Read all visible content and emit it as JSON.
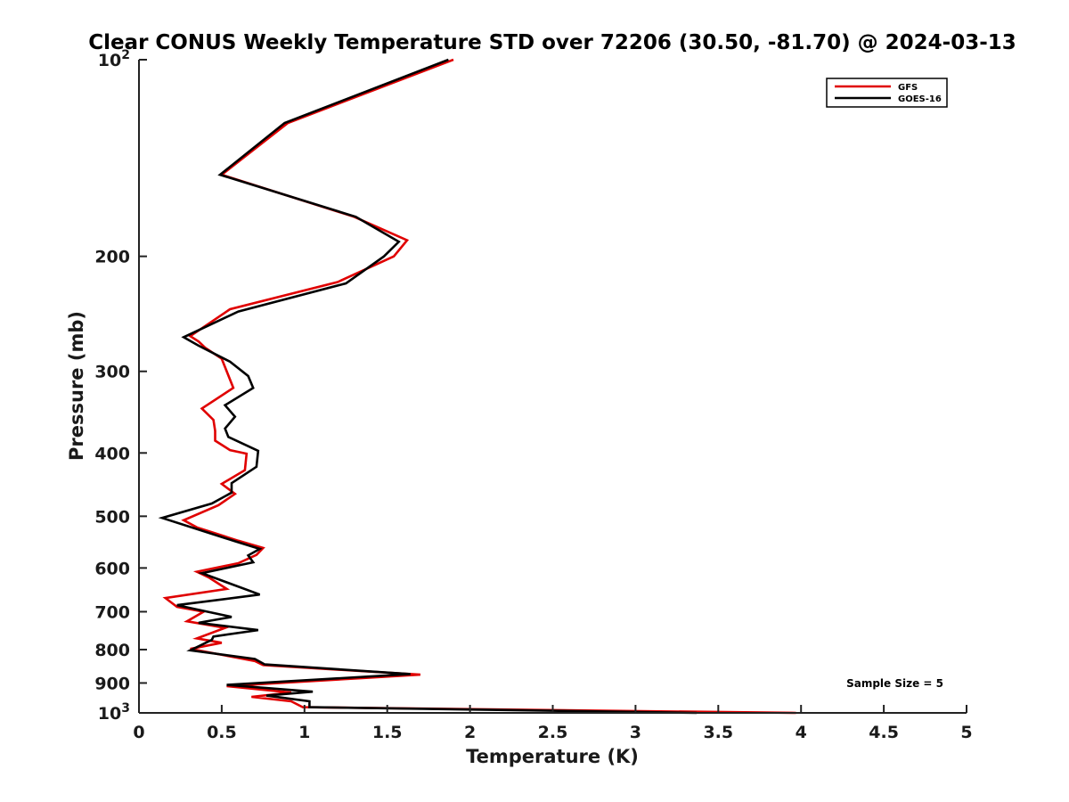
{
  "chart_data": {
    "type": "line",
    "title": "Clear CONUS Weekly Temperature STD over 72206 (30.50, -81.70) @ 2024-03-13",
    "xlabel": "Temperature (K)",
    "ylabel": "Pressure (mb)",
    "xlim": [
      0,
      5
    ],
    "ylim": [
      1000,
      100
    ],
    "y_scale": "log",
    "x_ticks": [
      "0",
      "0.5",
      "1",
      "1.5",
      "2",
      "2.5",
      "3",
      "3.5",
      "4",
      "4.5",
      "5"
    ],
    "y_ticks": [
      {
        "value": 100,
        "label": "10",
        "sup": "2"
      },
      {
        "value": 200,
        "label": "200",
        "sup": ""
      },
      {
        "value": 300,
        "label": "300",
        "sup": ""
      },
      {
        "value": 400,
        "label": "400",
        "sup": ""
      },
      {
        "value": 500,
        "label": "500",
        "sup": ""
      },
      {
        "value": 600,
        "label": "600",
        "sup": ""
      },
      {
        "value": 700,
        "label": "700",
        "sup": ""
      },
      {
        "value": 800,
        "label": "800",
        "sup": ""
      },
      {
        "value": 900,
        "label": "900",
        "sup": ""
      },
      {
        "value": 1000,
        "label": "10",
        "sup": "3"
      }
    ],
    "grid": false,
    "legend_position": "top-right",
    "annotation": "Sample Size = 5",
    "series": [
      {
        "name": "GFS",
        "color": "#e00000",
        "points": [
          [
            1.9,
            100
          ],
          [
            0.9,
            125
          ],
          [
            0.5,
            150
          ],
          [
            1.3,
            174
          ],
          [
            1.62,
            189
          ],
          [
            1.54,
            200
          ],
          [
            1.2,
            219
          ],
          [
            0.55,
            241
          ],
          [
            0.31,
            265
          ],
          [
            0.36,
            270
          ],
          [
            0.4,
            276
          ],
          [
            0.5,
            287
          ],
          [
            0.57,
            318
          ],
          [
            0.38,
            342
          ],
          [
            0.45,
            356
          ],
          [
            0.46,
            370
          ],
          [
            0.46,
            383
          ],
          [
            0.55,
            396
          ],
          [
            0.65,
            401
          ],
          [
            0.64,
            425
          ],
          [
            0.5,
            446
          ],
          [
            0.58,
            462
          ],
          [
            0.48,
            481
          ],
          [
            0.27,
            507
          ],
          [
            0.35,
            520
          ],
          [
            0.6,
            545
          ],
          [
            0.75,
            559
          ],
          [
            0.71,
            573
          ],
          [
            0.6,
            590
          ],
          [
            0.35,
            608
          ],
          [
            0.42,
            620
          ],
          [
            0.53,
            646
          ],
          [
            0.16,
            667
          ],
          [
            0.23,
            688
          ],
          [
            0.39,
            700
          ],
          [
            0.29,
            724
          ],
          [
            0.52,
            741
          ],
          [
            0.35,
            769
          ],
          [
            0.5,
            781
          ],
          [
            0.31,
            798
          ],
          [
            0.7,
            833
          ],
          [
            0.75,
            845
          ],
          [
            1.7,
            874
          ],
          [
            0.53,
            910
          ],
          [
            0.92,
            931
          ],
          [
            0.68,
            945
          ],
          [
            0.92,
            960
          ],
          [
            0.99,
            980
          ],
          [
            3.97,
            1000
          ]
        ]
      },
      {
        "name": "GOES-16",
        "color": "#000000",
        "points": [
          [
            1.87,
            100
          ],
          [
            0.88,
            125
          ],
          [
            0.49,
            150
          ],
          [
            1.31,
            174
          ],
          [
            1.57,
            190
          ],
          [
            1.48,
            200
          ],
          [
            1.25,
            220
          ],
          [
            0.6,
            243
          ],
          [
            0.27,
            266
          ],
          [
            0.36,
            274
          ],
          [
            0.55,
            290
          ],
          [
            0.66,
            305
          ],
          [
            0.69,
            318
          ],
          [
            0.52,
            338
          ],
          [
            0.58,
            352
          ],
          [
            0.52,
            367
          ],
          [
            0.54,
            378
          ],
          [
            0.72,
            397
          ],
          [
            0.71,
            420
          ],
          [
            0.56,
            445
          ],
          [
            0.56,
            460
          ],
          [
            0.44,
            478
          ],
          [
            0.14,
            503
          ],
          [
            0.58,
            546
          ],
          [
            0.73,
            561
          ],
          [
            0.66,
            574
          ],
          [
            0.69,
            588
          ],
          [
            0.38,
            611
          ],
          [
            0.73,
            659
          ],
          [
            0.23,
            684
          ],
          [
            0.56,
            713
          ],
          [
            0.36,
            728
          ],
          [
            0.72,
            747
          ],
          [
            0.45,
            764
          ],
          [
            0.44,
            773
          ],
          [
            0.31,
            802
          ],
          [
            0.7,
            827
          ],
          [
            0.76,
            843
          ],
          [
            1.64,
            872
          ],
          [
            0.53,
            906
          ],
          [
            1.05,
            928
          ],
          [
            0.77,
            941
          ],
          [
            1.03,
            960
          ],
          [
            1.03,
            980
          ],
          [
            3.37,
            1000
          ]
        ]
      }
    ]
  }
}
